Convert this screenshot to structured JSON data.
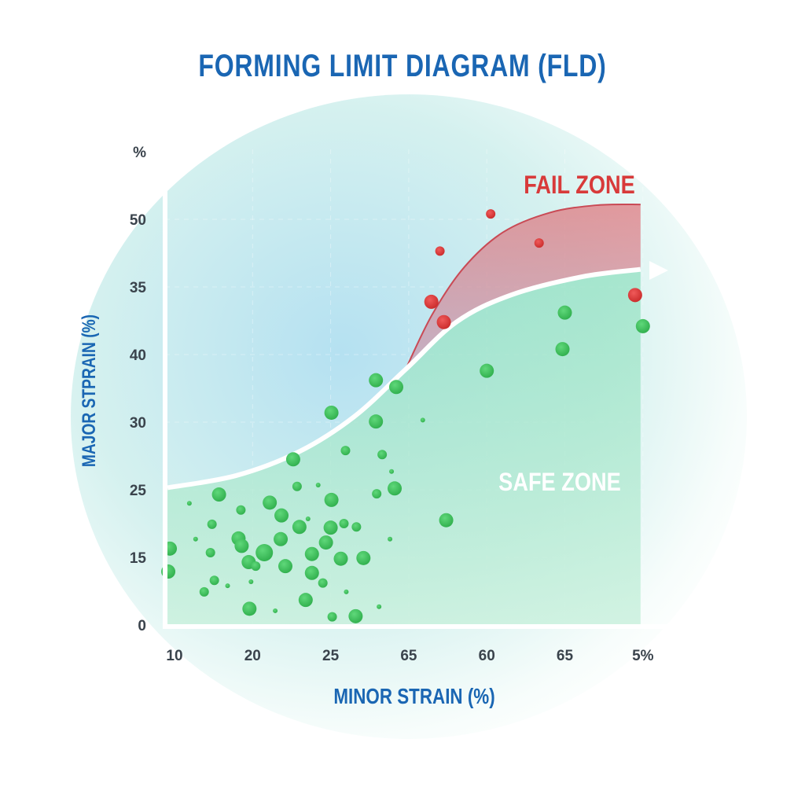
{
  "chart_data": {
    "type": "scatter",
    "title": "FORMING LIMIT DIAGRAM (FLD)",
    "xlabel": "MINOR STRAIN (%)",
    "ylabel": "MAJOR STPRAIN (%)",
    "x_ticks": [
      "10",
      "20",
      "25",
      "65",
      "60",
      "65",
      "5%"
    ],
    "y_ticks": [
      "0",
      "15",
      "25",
      "30",
      "40",
      "35",
      "50",
      "%"
    ],
    "note_units": "point coordinates are in tick-index positions (axis labels are non-monotonic)",
    "grid": true,
    "colors": {
      "safe": "#3cc05a",
      "fail": "#d93636",
      "title": "#1a66b3",
      "boundary": "#ffffff"
    },
    "annotations": {
      "fail_zone": "FAIL ZONE",
      "safe_zone": "SAFE ZONE"
    },
    "forming_limit_curve": [
      [
        -0.09,
        2.03
      ],
      [
        0.79,
        2.21
      ],
      [
        1.59,
        2.56
      ],
      [
        2.3,
        3.08
      ],
      [
        2.96,
        3.78
      ],
      [
        3.61,
        4.48
      ],
      [
        4.31,
        4.88
      ],
      [
        5.22,
        5.15
      ],
      [
        5.97,
        5.26
      ]
    ],
    "fail_upper_curve": [
      [
        2.96,
        3.78
      ],
      [
        3.3,
        4.59
      ],
      [
        3.71,
        5.29
      ],
      [
        4.21,
        5.81
      ],
      [
        4.81,
        6.1
      ],
      [
        5.42,
        6.21
      ],
      [
        5.97,
        6.22
      ]
    ],
    "series": [
      {
        "name": "fail",
        "points": [
          [
            4.05,
            6.08,
            1
          ],
          [
            3.4,
            5.53,
            1
          ],
          [
            4.67,
            5.65,
            1
          ],
          [
            3.29,
            4.78,
            2
          ],
          [
            3.45,
            4.48,
            2
          ],
          [
            5.9,
            4.88,
            2
          ]
        ]
      },
      {
        "name": "safe",
        "points": [
          [
            5.0,
            4.62,
            2
          ],
          [
            4.97,
            4.08,
            2
          ],
          [
            6.0,
            4.42,
            2
          ],
          [
            4.0,
            3.76,
            2
          ],
          [
            2.84,
            3.52,
            2
          ],
          [
            2.58,
            3.62,
            2
          ],
          [
            2.01,
            3.14,
            2
          ],
          [
            2.58,
            3.01,
            2
          ],
          [
            1.52,
            2.45,
            2
          ],
          [
            2.19,
            2.58,
            1
          ],
          [
            2.66,
            2.52,
            1
          ],
          [
            2.82,
            2.02,
            2
          ],
          [
            2.59,
            1.94,
            1
          ],
          [
            1.57,
            2.05,
            1
          ],
          [
            2.01,
            1.85,
            2
          ],
          [
            0.57,
            1.93,
            2
          ],
          [
            0.85,
            1.7,
            1
          ],
          [
            1.22,
            1.81,
            2
          ],
          [
            3.48,
            1.55,
            2
          ],
          [
            -0.06,
            1.13,
            2
          ],
          [
            -0.08,
            0.79,
            2
          ],
          [
            0.82,
            1.28,
            2
          ],
          [
            0.86,
            1.17,
            2
          ],
          [
            1.37,
            1.62,
            2
          ],
          [
            1.6,
            1.45,
            2
          ],
          [
            2.0,
            1.44,
            2
          ],
          [
            1.36,
            1.27,
            2
          ],
          [
            1.15,
            1.07,
            3
          ],
          [
            0.95,
            0.93,
            2
          ],
          [
            1.42,
            0.87,
            2
          ],
          [
            1.94,
            1.22,
            2
          ],
          [
            1.76,
            1.05,
            2
          ],
          [
            2.13,
            0.98,
            2
          ],
          [
            2.42,
            0.99,
            2
          ],
          [
            1.76,
            0.77,
            2
          ],
          [
            1.68,
            0.37,
            2
          ],
          [
            0.96,
            0.24,
            2
          ],
          [
            2.02,
            0.12,
            1
          ],
          [
            2.32,
            0.13,
            2
          ],
          [
            0.51,
            0.66,
            1
          ],
          [
            0.38,
            0.49,
            1
          ],
          [
            0.48,
            1.49,
            1
          ],
          [
            1.04,
            0.87,
            1
          ],
          [
            1.9,
            0.62,
            1
          ],
          [
            1.29,
            0.21,
            0
          ],
          [
            2.62,
            0.27,
            0
          ],
          [
            2.2,
            0.49,
            0
          ],
          [
            2.76,
            1.27,
            0
          ],
          [
            3.18,
            3.03,
            0
          ],
          [
            2.78,
            2.27,
            0
          ],
          [
            0.19,
            1.8,
            0
          ],
          [
            0.27,
            1.27,
            0
          ],
          [
            0.98,
            0.64,
            0
          ],
          [
            2.17,
            1.5,
            1
          ],
          [
            2.33,
            1.45,
            1
          ],
          [
            0.46,
            1.07,
            1
          ],
          [
            0.68,
            0.58,
            0
          ],
          [
            1.84,
            2.07,
            0
          ],
          [
            1.71,
            1.57,
            0
          ]
        ]
      }
    ]
  }
}
